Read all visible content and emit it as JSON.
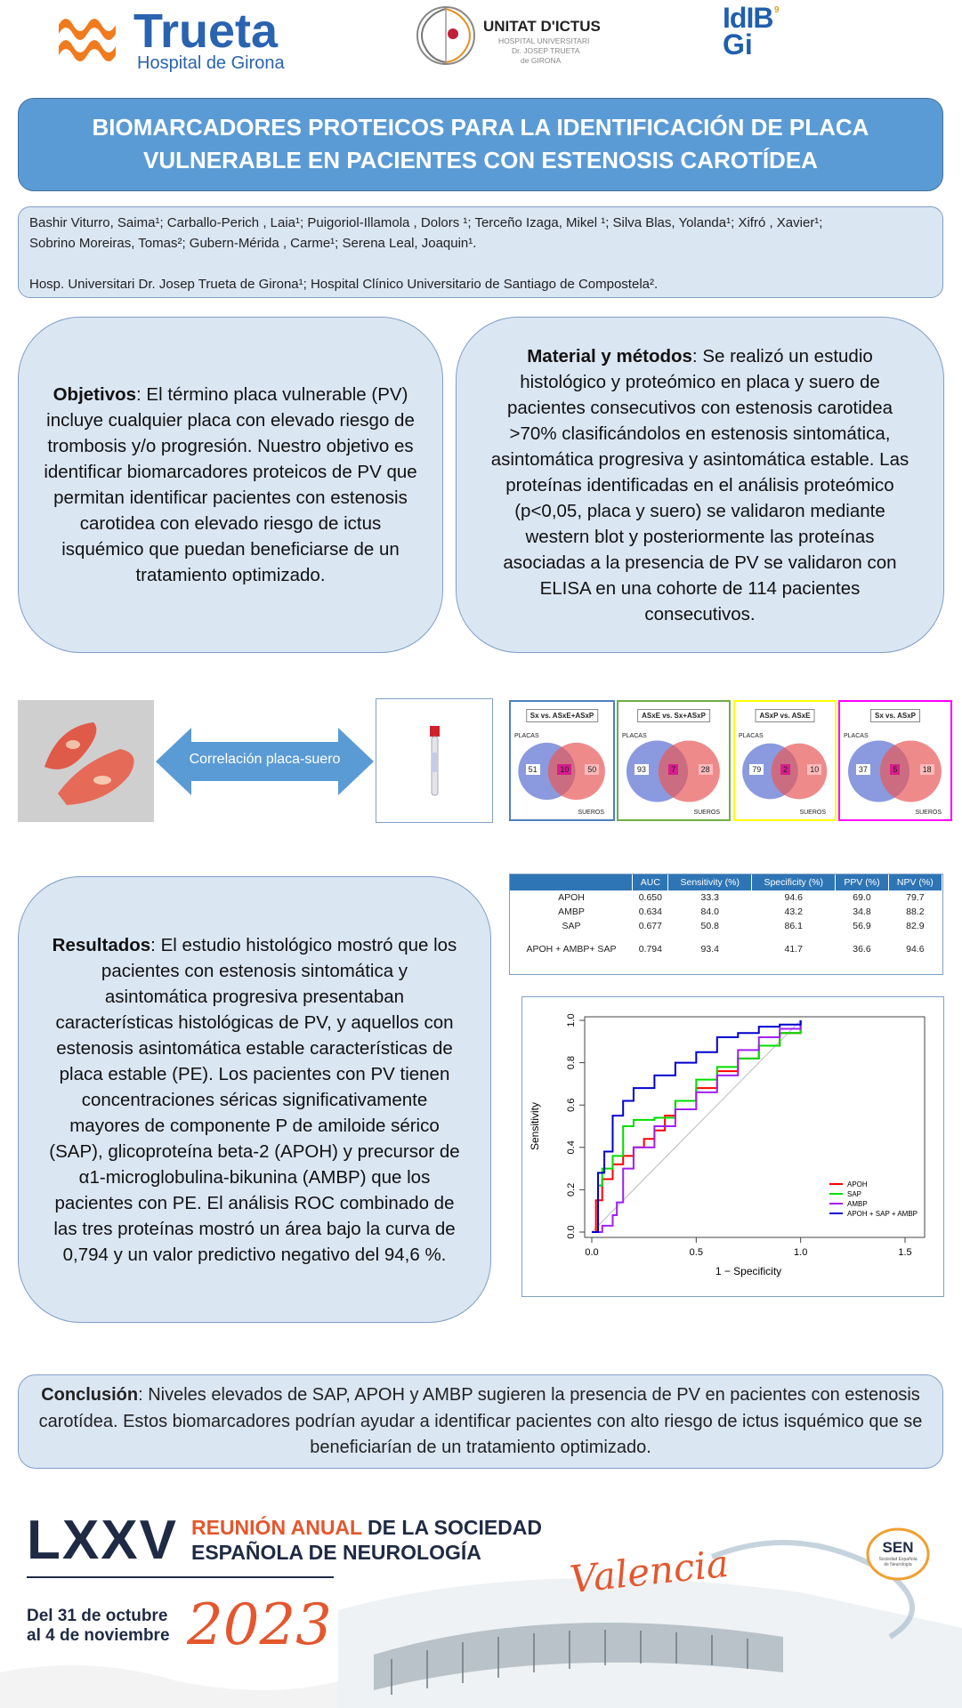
{
  "header": {
    "trueta_name": "Trueta",
    "trueta_sub": "Hospital de Girona",
    "ictus_title": "UNITAT D'ICTUS",
    "ictus_sub1": "HOSPITAL UNIVERSITARI",
    "ictus_sub2": "Dr. JOSEP TRUETA",
    "ictus_sub3": "de GIRONA",
    "idibgi_l1": "IdIB",
    "idibgi_l2": "Gi"
  },
  "title": {
    "line1": "BIOMARCADORES PROTEICOS PARA LA IDENTIFICACIÓN DE PLACA",
    "line2": "VULNERABLE EN PACIENTES CON ESTENOSIS CAROTÍDEA"
  },
  "authors": {
    "names_line1": "Bashir Viturro, Saima¹; Carballo-Perich , Laia¹; Puigoriol-Illamola , Dolors ¹; Terceño Izaga, Mikel ¹; Silva Blas, Yolanda¹; Xifró , Xavier¹;",
    "names_line2": "Sobrino Moreiras, Tomas²; Gubern-Mérida , Carme¹; Serena Leal, Joaquin¹.",
    "affiliations": "Hosp. Universitari Dr. Josep Trueta de Girona¹; Hospital Clínico Universitario de Santiago de Compostela²."
  },
  "objetivos": {
    "heading": "Objetivos",
    "text": ": El término placa vulnerable (PV) incluye cualquier placa con elevado riesgo de trombosis y/o progresión. Nuestro objetivo es identificar biomarcadores proteicos de PV que permitan identificar pacientes con estenosis carotidea con elevado riesgo de ictus isquémico que puedan beneficiarse de un tratamiento optimizado."
  },
  "metodos": {
    "heading": "Material y métodos",
    "text": ": Se realizó un estudio histológico y proteómico en placa y suero de pacientes consecutivos con estenosis carotidea >70% clasificándolos en estenosis sintomática, asintomática progresiva y asintomática estable. Las proteínas identificadas en el análisis proteómico (p<0,05, placa y suero) se validaron mediante western blot y posteriormente las proteínas asociadas a la presencia de PV se validaron con ELISA en una cohorte de 114 pacientes consecutivos."
  },
  "correlation_label": "Correlación placa-suero",
  "venns": [
    {
      "label": "Sx vs. ASxE+ASxP",
      "left": "51",
      "mid": "10",
      "right": "50",
      "color": "#4f81bd"
    },
    {
      "label": "ASxE vs. Sx+ASxP",
      "left": "93",
      "mid": "7",
      "right": "28",
      "color": "#70ad47"
    },
    {
      "label": "ASxP vs. ASxE",
      "left": "79",
      "mid": "2",
      "right": "10",
      "color": "#ffff00"
    },
    {
      "label": "Sx vs. ASxP",
      "left": "37",
      "mid": "5",
      "right": "18",
      "color": "#ff00ff"
    }
  ],
  "venn_placas": "PLACAS",
  "venn_sueros": "SUEROS",
  "resultados": {
    "heading": "Resultados",
    "text": ": El estudio histológico mostró que los pacientes con estenosis sintomática y asintomática progresiva presentaban características histológicas de PV, y aquellos con estenosis asintomática estable características de placa estable (PE). Los pacientes con PV tienen concentraciones séricas significativamente mayores de componente P de amiloide sérico (SAP), glicoproteína beta-2 (APOH) y precursor de α1-microglobulina-bikunina (AMBP) que los pacientes con PE. El análisis ROC combinado de las tres proteínas mostró un área bajo la curva de 0,794 y un valor predictivo negativo del 94,6 %."
  },
  "table": {
    "headers": [
      "",
      "AUC",
      "Sensitivity (%)",
      "Specificity (%)",
      "PPV (%)",
      "NPV (%)"
    ],
    "rows": [
      [
        "APOH",
        "0.650",
        "33.3",
        "94.6",
        "69.0",
        "79.7"
      ],
      [
        "AMBP",
        "0.634",
        "84.0",
        "43.2",
        "34.8",
        "88.2"
      ],
      [
        "SAP",
        "0.677",
        "50.8",
        "86.1",
        "56.9",
        "82.9"
      ],
      [
        "APOH + AMBP+ SAP",
        "0.794",
        "93.4",
        "41.7",
        "36.6",
        "94.6"
      ]
    ]
  },
  "chart_data": {
    "type": "line",
    "title": "",
    "xlabel": "1 − Specificity",
    "ylabel": "Sensitivity",
    "xlim": [
      0,
      1.5
    ],
    "ylim": [
      0,
      1.0
    ],
    "xticks": [
      "0.0",
      "0.5",
      "1.0",
      "1.5"
    ],
    "yticks": [
      "0.0",
      "0.2",
      "0.4",
      "0.6",
      "0.8",
      "1.0"
    ],
    "legend_position": "bottom-right",
    "series": [
      {
        "name": "APOH",
        "color": "#ff0000",
        "x": [
          0,
          0.02,
          0.05,
          0.1,
          0.15,
          0.2,
          0.25,
          0.3,
          0.35,
          0.4,
          0.5,
          0.6,
          0.7,
          0.8,
          0.9,
          1.0
        ],
        "y": [
          0,
          0.15,
          0.25,
          0.32,
          0.36,
          0.4,
          0.44,
          0.48,
          0.55,
          0.62,
          0.68,
          0.76,
          0.82,
          0.88,
          0.94,
          1.0
        ]
      },
      {
        "name": "SAP",
        "color": "#00dd00",
        "x": [
          0,
          0.03,
          0.05,
          0.1,
          0.15,
          0.2,
          0.3,
          0.4,
          0.5,
          0.6,
          0.7,
          0.8,
          0.9,
          1.0
        ],
        "y": [
          0,
          0.22,
          0.3,
          0.36,
          0.5,
          0.53,
          0.54,
          0.62,
          0.72,
          0.78,
          0.82,
          0.88,
          0.94,
          1.0
        ]
      },
      {
        "name": "AMBP",
        "color": "#a020f0",
        "x": [
          0,
          0.05,
          0.1,
          0.12,
          0.15,
          0.2,
          0.3,
          0.4,
          0.5,
          0.6,
          0.7,
          0.8,
          0.9,
          1.0
        ],
        "y": [
          0,
          0.03,
          0.08,
          0.14,
          0.3,
          0.4,
          0.5,
          0.58,
          0.66,
          0.74,
          0.86,
          0.92,
          0.96,
          1.0
        ]
      },
      {
        "name": "APOH + SAP + AMBP",
        "color": "#0000cc",
        "x": [
          0,
          0.03,
          0.06,
          0.1,
          0.15,
          0.2,
          0.3,
          0.4,
          0.5,
          0.6,
          0.7,
          0.8,
          0.9,
          1.0
        ],
        "y": [
          0,
          0.28,
          0.38,
          0.55,
          0.62,
          0.68,
          0.74,
          0.8,
          0.85,
          0.92,
          0.94,
          0.97,
          0.98,
          1.0
        ]
      }
    ]
  },
  "conclusion": {
    "heading": "Conclusión",
    "text": ": Niveles elevados de SAP, APOH y AMBP sugieren la presencia de PV en pacientes con estenosis carotídea. Estos biomarcadores podrían ayudar a identificar pacientes con alto riesgo de ictus isquémico que se beneficiarían de un tratamiento optimizado."
  },
  "footer": {
    "roman": "LXXV",
    "line1a": "REUNIÓN ANUAL",
    "line1b": " DE LA SOCIEDAD",
    "line2": "ESPAÑOLA DE NEUROLOGÍA",
    "city": "Valencia",
    "dates1": "Del 31 de octubre",
    "dates2": "al 4 de noviembre",
    "year": "2023",
    "sen": "SEN",
    "sen_sub": "Sociedad Española de Neurología"
  }
}
